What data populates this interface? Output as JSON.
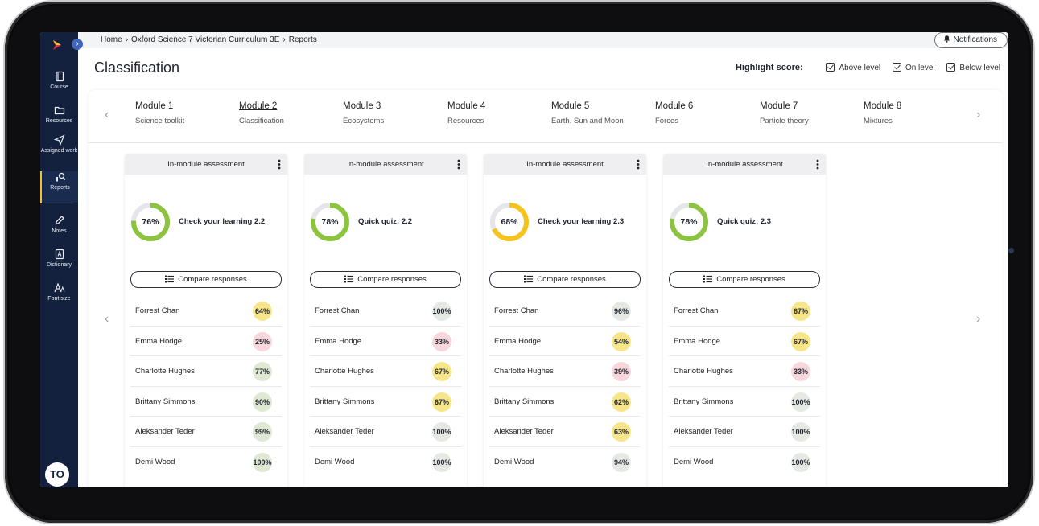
{
  "breadcrumb": [
    "Home",
    "Oxford Science 7 Victorian Curriculum 3E",
    "Reports"
  ],
  "notifications_label": "Notifications",
  "page_title": "Classification",
  "highlight": {
    "label": "Highlight score:",
    "options": [
      "Above level",
      "On level",
      "Below level"
    ]
  },
  "sidebar": {
    "collapse_glyph": "›",
    "items": [
      {
        "label": "Course",
        "icon": "book-icon"
      },
      {
        "label": "Resources",
        "icon": "folder-icon"
      },
      {
        "label": "Assigned work",
        "icon": "send-icon"
      },
      {
        "label": "Reports",
        "icon": "reports-icon"
      },
      {
        "label": "Notes",
        "icon": "pencil-icon"
      },
      {
        "label": "Dictionary",
        "icon": "dictionary-icon"
      },
      {
        "label": "Font size",
        "icon": "font-size-icon"
      }
    ],
    "avatar_initials": "TO"
  },
  "arrows": {
    "left": "‹",
    "right": "›"
  },
  "modules": [
    {
      "title": "Module 1",
      "subtitle": "Science toolkit"
    },
    {
      "title": "Module 2",
      "subtitle": "Classification"
    },
    {
      "title": "Module 3",
      "subtitle": "Ecosystems"
    },
    {
      "title": "Module 4",
      "subtitle": "Resources"
    },
    {
      "title": "Module 5",
      "subtitle": "Earth, Sun and Moon"
    },
    {
      "title": "Module 6",
      "subtitle": "Forces"
    },
    {
      "title": "Module 7",
      "subtitle": "Particle theory"
    },
    {
      "title": "Module 8",
      "subtitle": "Mixtures"
    }
  ],
  "colors": {
    "green": "#8cc43f",
    "yellow": "#f5c41c",
    "ring_track": "#e4e6ea",
    "badge_green": "#dfe8d2",
    "badge_yellow": "#f7e58a",
    "badge_pink": "#f7d6dc",
    "badge_grey": "#e6e8e3"
  },
  "cards": [
    {
      "header": "In-module assessment",
      "score": "76%",
      "score_value": 76,
      "ring_color": "green",
      "name": "Check your learning 2.2",
      "compare_label": "Compare responses",
      "students": [
        {
          "name": "Forrest Chan",
          "score": "64%",
          "level": "yellow"
        },
        {
          "name": "Emma Hodge",
          "score": "25%",
          "level": "pink"
        },
        {
          "name": "Charlotte Hughes",
          "score": "77%",
          "level": "green"
        },
        {
          "name": "Brittany Simmons",
          "score": "90%",
          "level": "green"
        },
        {
          "name": "Aleksander Teder",
          "score": "99%",
          "level": "green"
        },
        {
          "name": "Demi Wood",
          "score": "100%",
          "level": "green"
        }
      ]
    },
    {
      "header": "In-module assessment",
      "score": "78%",
      "score_value": 78,
      "ring_color": "green",
      "name": "Quick quiz: 2.2",
      "compare_label": "Compare responses",
      "students": [
        {
          "name": "Forrest Chan",
          "score": "100%",
          "level": "grey"
        },
        {
          "name": "Emma Hodge",
          "score": "33%",
          "level": "pink"
        },
        {
          "name": "Charlotte Hughes",
          "score": "67%",
          "level": "yellow"
        },
        {
          "name": "Brittany Simmons",
          "score": "67%",
          "level": "yellow"
        },
        {
          "name": "Aleksander Teder",
          "score": "100%",
          "level": "grey"
        },
        {
          "name": "Demi Wood",
          "score": "100%",
          "level": "grey"
        }
      ]
    },
    {
      "header": "In-module assessment",
      "score": "68%",
      "score_value": 68,
      "ring_color": "yellow",
      "name": "Check your learning 2.3",
      "compare_label": "Compare responses",
      "students": [
        {
          "name": "Forrest Chan",
          "score": "96%",
          "level": "grey"
        },
        {
          "name": "Emma Hodge",
          "score": "54%",
          "level": "yellow"
        },
        {
          "name": "Charlotte Hughes",
          "score": "39%",
          "level": "pink"
        },
        {
          "name": "Brittany Simmons",
          "score": "62%",
          "level": "yellow"
        },
        {
          "name": "Aleksander Teder",
          "score": "63%",
          "level": "yellow"
        },
        {
          "name": "Demi Wood",
          "score": "94%",
          "level": "grey"
        }
      ]
    },
    {
      "header": "In-module assessment",
      "score": "78%",
      "score_value": 78,
      "ring_color": "green",
      "name": "Quick quiz: 2.3",
      "compare_label": "Compare responses",
      "students": [
        {
          "name": "Forrest Chan",
          "score": "67%",
          "level": "yellow"
        },
        {
          "name": "Emma Hodge",
          "score": "67%",
          "level": "yellow"
        },
        {
          "name": "Charlotte Hughes",
          "score": "33%",
          "level": "pink"
        },
        {
          "name": "Brittany Simmons",
          "score": "100%",
          "level": "grey"
        },
        {
          "name": "Aleksander Teder",
          "score": "100%",
          "level": "grey"
        },
        {
          "name": "Demi Wood",
          "score": "100%",
          "level": "grey"
        }
      ]
    }
  ]
}
